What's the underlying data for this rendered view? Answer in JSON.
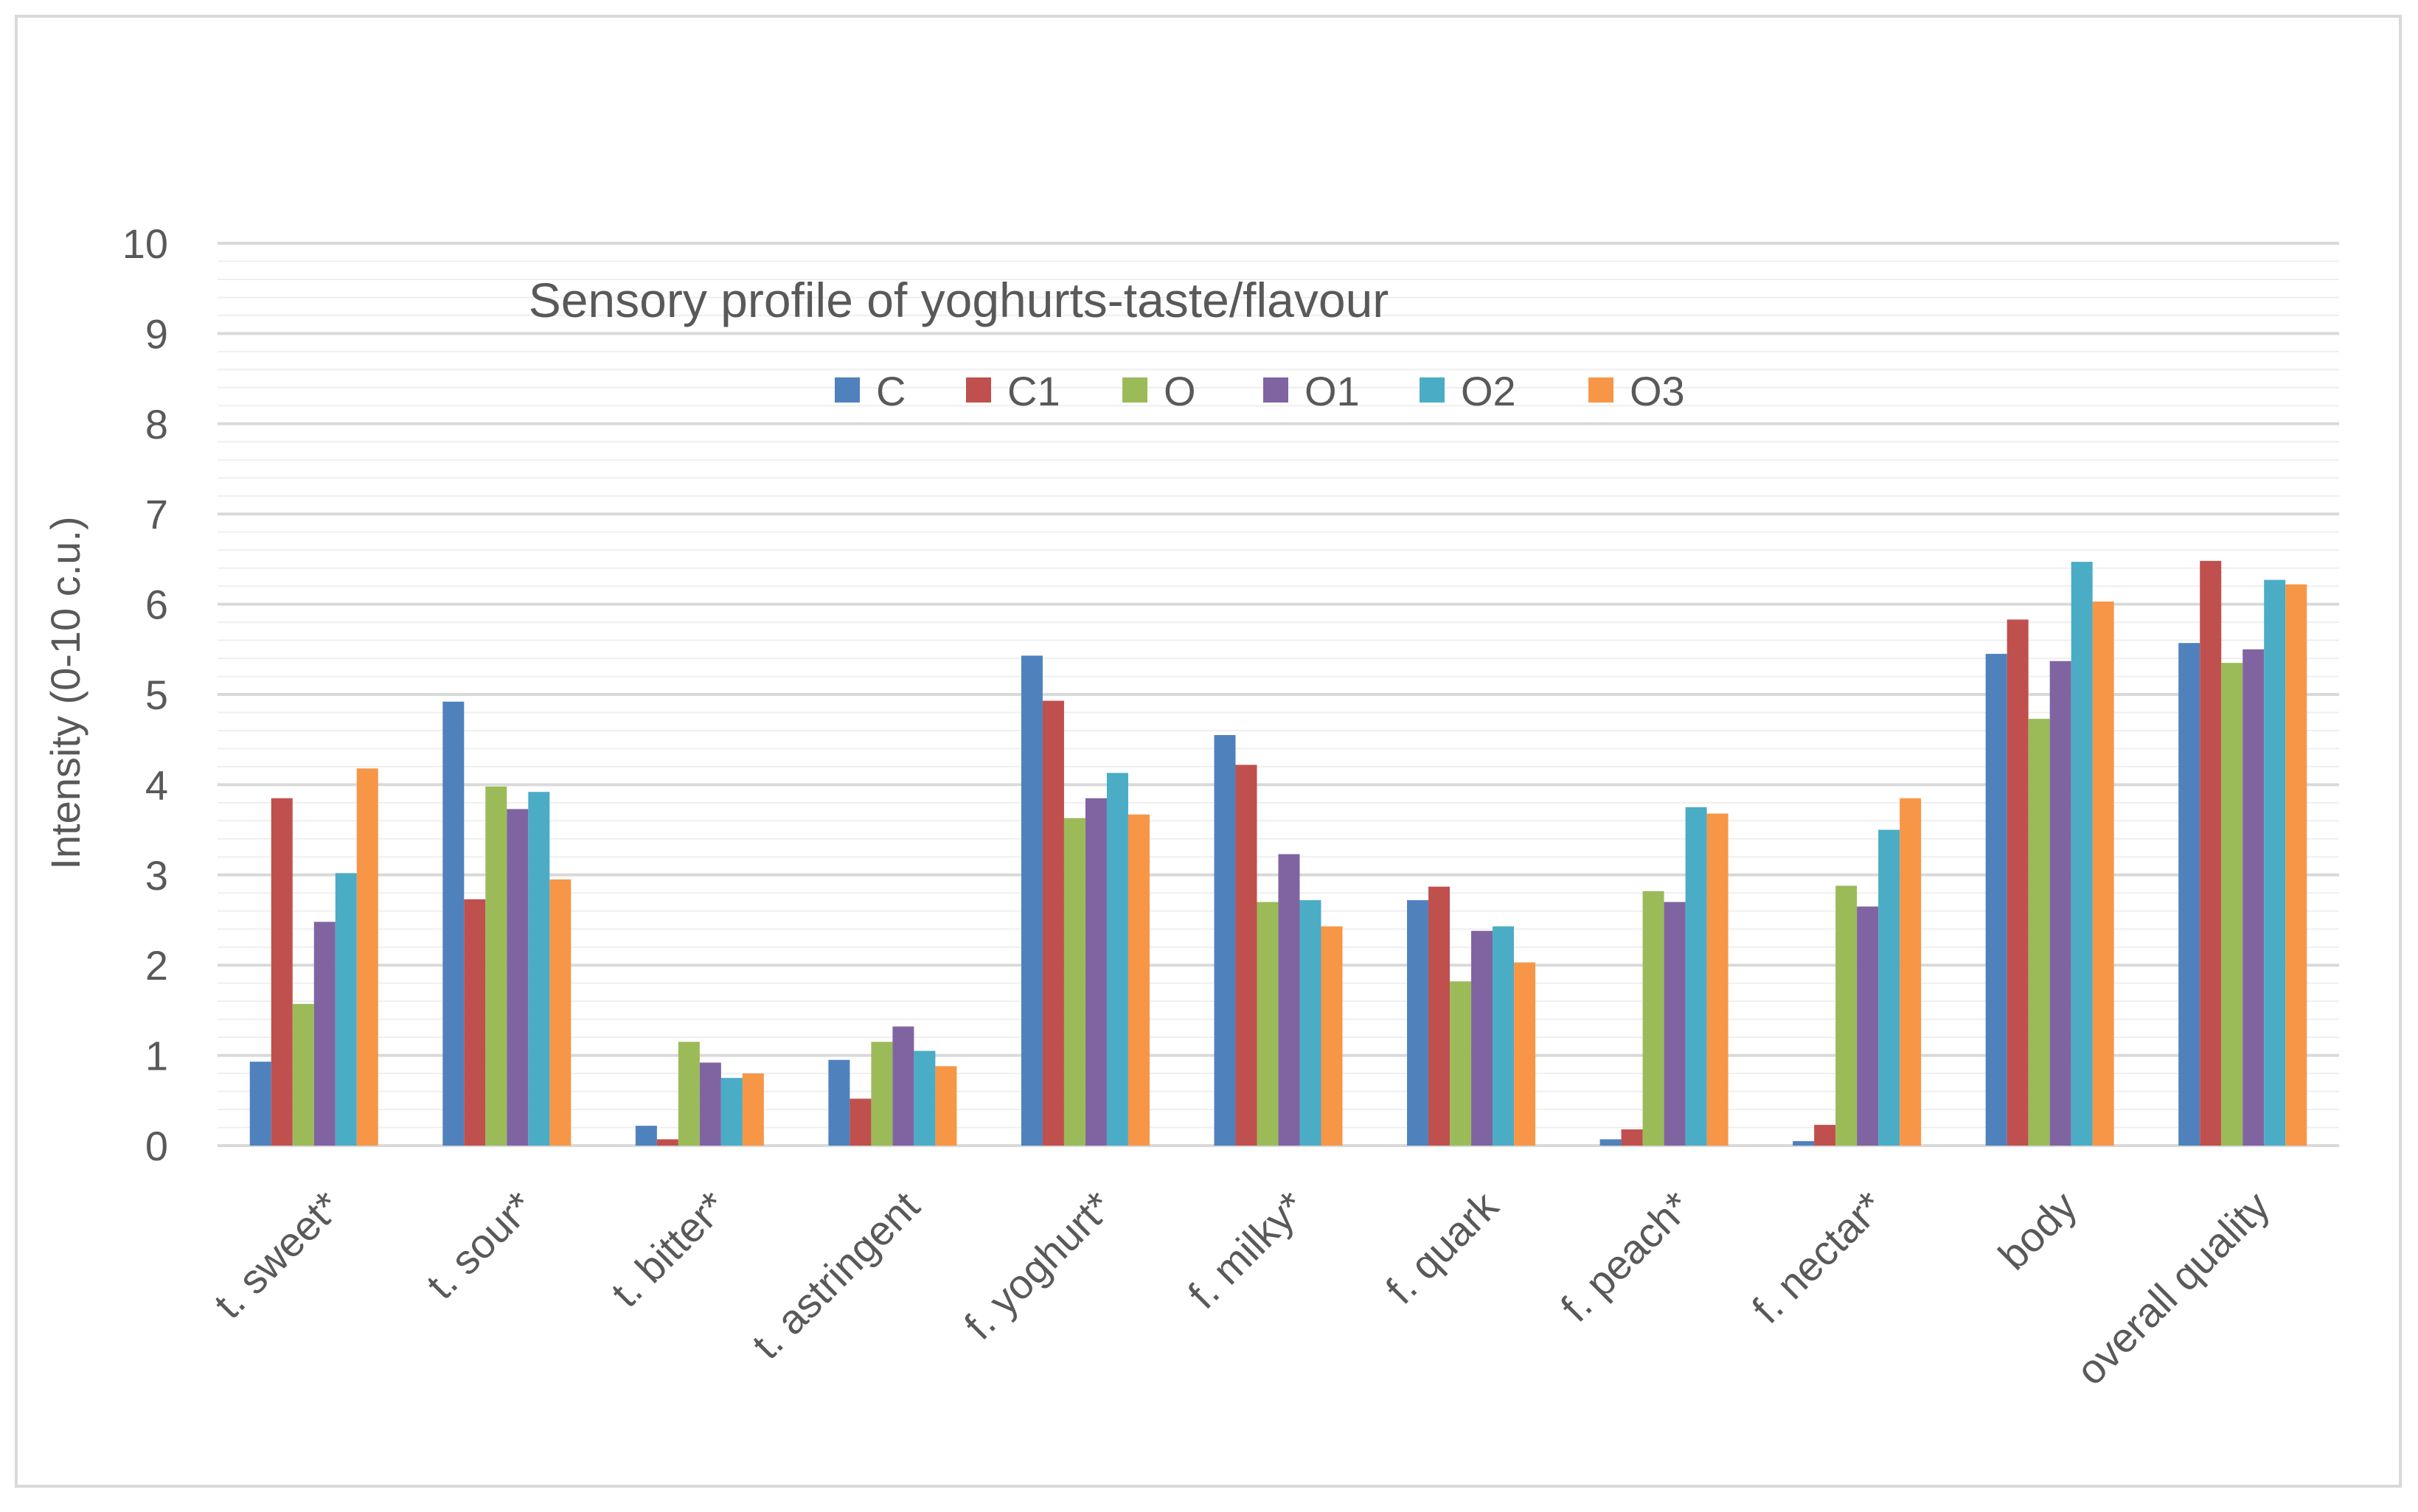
{
  "chart_data": {
    "type": "bar",
    "title": "Sensory profile of yoghurts-taste/flavour",
    "ylabel": "Intensity (0-10 c.u.)",
    "xlabel": "",
    "ylim": [
      0,
      10
    ],
    "yticks": [
      0,
      1,
      2,
      3,
      4,
      5,
      6,
      7,
      8,
      9,
      10
    ],
    "grid": true,
    "legend_position": "top",
    "categories": [
      "t. sweet*",
      "t. sour*",
      "t. bitter*",
      "t. astringent",
      "f. yoghurt*",
      "f. milky*",
      "f. quark",
      "f. peach*",
      "f. nectar*",
      "body",
      "overall quality"
    ],
    "series": [
      {
        "name": "C",
        "color": "#4f81bd",
        "values": [
          0.93,
          4.92,
          0.22,
          0.95,
          5.43,
          4.55,
          2.72,
          0.07,
          0.05,
          5.45,
          5.57
        ]
      },
      {
        "name": "C1",
        "color": "#c0504d",
        "values": [
          3.85,
          2.73,
          0.07,
          0.52,
          4.93,
          4.22,
          2.87,
          0.18,
          0.23,
          5.83,
          6.48
        ]
      },
      {
        "name": "O",
        "color": "#9bbb59",
        "values": [
          1.57,
          3.98,
          1.15,
          1.15,
          3.63,
          2.7,
          1.82,
          2.82,
          2.88,
          4.73,
          5.35
        ]
      },
      {
        "name": "O1",
        "color": "#8064a2",
        "values": [
          2.48,
          3.73,
          0.92,
          1.32,
          3.85,
          3.23,
          2.38,
          2.7,
          2.65,
          5.37,
          5.5
        ]
      },
      {
        "name": "O2",
        "color": "#4bacc6",
        "values": [
          3.02,
          3.92,
          0.75,
          1.05,
          4.13,
          2.72,
          2.43,
          3.75,
          3.5,
          6.47,
          6.27
        ]
      },
      {
        "name": "O3",
        "color": "#f79646",
        "values": [
          4.18,
          2.95,
          0.8,
          0.88,
          3.67,
          2.43,
          2.03,
          3.68,
          3.85,
          6.03,
          6.22
        ]
      }
    ]
  }
}
